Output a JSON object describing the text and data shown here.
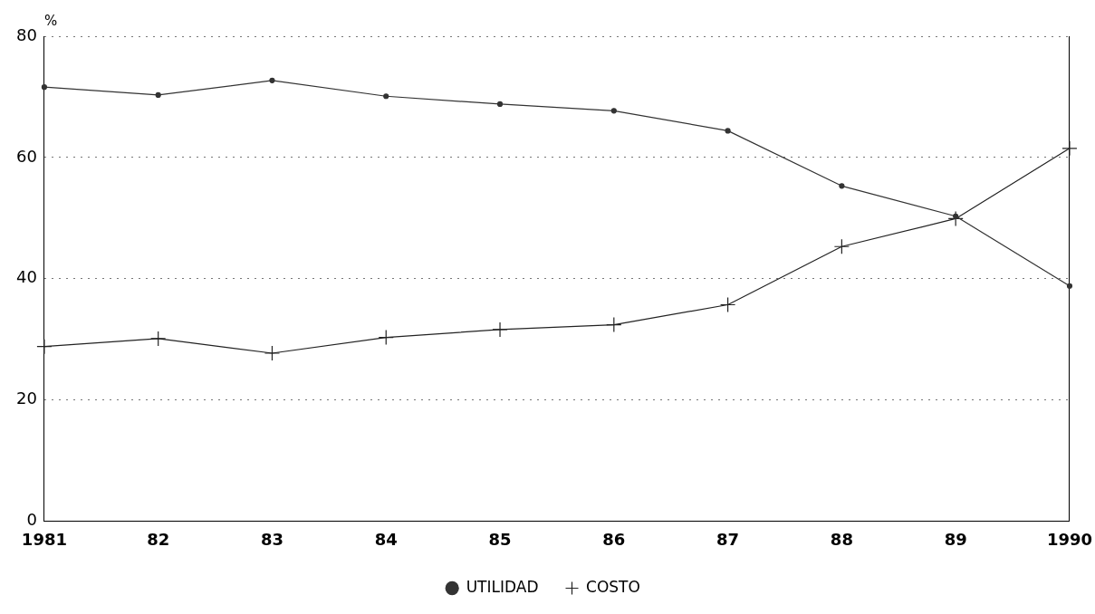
{
  "chart_data": {
    "type": "line",
    "ylabel": "%",
    "categories": [
      "1981",
      "82",
      "83",
      "84",
      "85",
      "86",
      "87",
      "88",
      "89",
      "1990"
    ],
    "series": [
      {
        "name": "UTILIDAD",
        "color": "#333333",
        "marker": "circle",
        "values": [
          71.6,
          70.3,
          72.7,
          70.1,
          68.8,
          67.7,
          64.4,
          55.3,
          50.3,
          38.8
        ]
      },
      {
        "name": "COSTO",
        "color": "#222222",
        "marker": "cross",
        "values": [
          28.8,
          30.1,
          27.7,
          30.3,
          31.6,
          32.4,
          35.7,
          45.3,
          49.9,
          61.5
        ]
      }
    ],
    "ylim": [
      0,
      80
    ],
    "yticks": [
      0,
      20,
      40,
      60,
      80
    ],
    "grid": "y",
    "legend": "bottom",
    "line_style": "solid"
  }
}
